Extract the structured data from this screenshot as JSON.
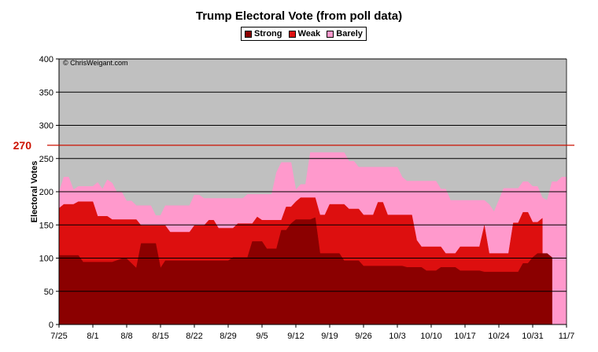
{
  "chart_data": {
    "type": "area",
    "stacked": true,
    "title": "Trump Electoral Vote (from poll data)",
    "ylabel": "Electoral Votes",
    "xlabel": "",
    "ylim": [
      0,
      400
    ],
    "yticks": [
      0,
      50,
      100,
      150,
      200,
      250,
      300,
      350,
      400
    ],
    "xticks": [
      "7/25",
      "8/1",
      "8/8",
      "8/15",
      "8/22",
      "8/29",
      "9/5",
      "9/12",
      "9/19",
      "9/26",
      "10/3",
      "10/10",
      "10/17",
      "10/24",
      "10/31",
      "11/7"
    ],
    "x_range": [
      0,
      105
    ],
    "grid": true,
    "legend_position": "top-center",
    "watermark": "© ChrisWeigant.com",
    "reference_line": {
      "value": 270,
      "label": "270",
      "color": "#cc1100"
    },
    "colors": {
      "Strong": "#8b0000",
      "Weak": "#dd0f0f",
      "Barely": "#ff99cc",
      "plot_bg": "#c0c0c0"
    },
    "series_cumulative": [
      {
        "name": "Strong",
        "points": [
          [
            0,
            104
          ],
          [
            4,
            104
          ],
          [
            5,
            94
          ],
          [
            11,
            94
          ],
          [
            13,
            99
          ],
          [
            14,
            99
          ],
          [
            16,
            85
          ],
          [
            17,
            122
          ],
          [
            20,
            122
          ],
          [
            21,
            85
          ],
          [
            22,
            96
          ],
          [
            35,
            96
          ],
          [
            36,
            101
          ],
          [
            39,
            101
          ],
          [
            40,
            125
          ],
          [
            42,
            125
          ],
          [
            43,
            114
          ],
          [
            45,
            114
          ],
          [
            46,
            142
          ],
          [
            47,
            142
          ],
          [
            48,
            152
          ],
          [
            49,
            158
          ],
          [
            52,
            158
          ],
          [
            53,
            161
          ],
          [
            54,
            107
          ],
          [
            58,
            107
          ],
          [
            59,
            96
          ],
          [
            62,
            96
          ],
          [
            63,
            88
          ],
          [
            71,
            88
          ],
          [
            72,
            86
          ],
          [
            75,
            86
          ],
          [
            76,
            81
          ],
          [
            78,
            81
          ],
          [
            79,
            86
          ],
          [
            82,
            86
          ],
          [
            83,
            81
          ],
          [
            87,
            81
          ],
          [
            88,
            79
          ],
          [
            95,
            79
          ],
          [
            96,
            92
          ],
          [
            97,
            92
          ],
          [
            98,
            101
          ],
          [
            99,
            107
          ],
          [
            101,
            107
          ],
          [
            102,
            101
          ]
        ]
      },
      {
        "name": "Weak",
        "points": [
          [
            0,
            175
          ],
          [
            1,
            181
          ],
          [
            3,
            181
          ],
          [
            4,
            185
          ],
          [
            7,
            185
          ],
          [
            8,
            163
          ],
          [
            10,
            163
          ],
          [
            11,
            158
          ],
          [
            16,
            158
          ],
          [
            17,
            149
          ],
          [
            22,
            149
          ],
          [
            23,
            139
          ],
          [
            27,
            139
          ],
          [
            28,
            149
          ],
          [
            30,
            149
          ],
          [
            31,
            157
          ],
          [
            32,
            157
          ],
          [
            33,
            145
          ],
          [
            36,
            145
          ],
          [
            37,
            152
          ],
          [
            40,
            152
          ],
          [
            41,
            162
          ],
          [
            42,
            157
          ],
          [
            43,
            157
          ],
          [
            46,
            157
          ],
          [
            47,
            177
          ],
          [
            48,
            177
          ],
          [
            49,
            185
          ],
          [
            50,
            191
          ],
          [
            53,
            191
          ],
          [
            54,
            165
          ],
          [
            55,
            165
          ],
          [
            56,
            181
          ],
          [
            59,
            181
          ],
          [
            60,
            174
          ],
          [
            62,
            174
          ],
          [
            63,
            165
          ],
          [
            65,
            165
          ],
          [
            66,
            184
          ],
          [
            67,
            184
          ],
          [
            68,
            165
          ],
          [
            73,
            165
          ],
          [
            74,
            127
          ],
          [
            75,
            117
          ],
          [
            79,
            117
          ],
          [
            80,
            107
          ],
          [
            82,
            107
          ],
          [
            83,
            117
          ],
          [
            87,
            117
          ],
          [
            88,
            149
          ],
          [
            89,
            107
          ],
          [
            92,
            107
          ],
          [
            93,
            107
          ],
          [
            94,
            153
          ],
          [
            95,
            153
          ],
          [
            96,
            169
          ],
          [
            97,
            169
          ],
          [
            98,
            154
          ],
          [
            99,
            154
          ],
          [
            100,
            160
          ]
        ]
      },
      {
        "name": "Barely",
        "points": [
          [
            0,
            199
          ],
          [
            1,
            222
          ],
          [
            2,
            222
          ],
          [
            3,
            203
          ],
          [
            4,
            208
          ],
          [
            7,
            208
          ],
          [
            8,
            214
          ],
          [
            9,
            204
          ],
          [
            10,
            218
          ],
          [
            11,
            213
          ],
          [
            12,
            199
          ],
          [
            13,
            199
          ],
          [
            14,
            186
          ],
          [
            15,
            186
          ],
          [
            16,
            179
          ],
          [
            19,
            179
          ],
          [
            20,
            164
          ],
          [
            21,
            164
          ],
          [
            22,
            179
          ],
          [
            27,
            179
          ],
          [
            28,
            195
          ],
          [
            29,
            195
          ],
          [
            30,
            190
          ],
          [
            38,
            190
          ],
          [
            39,
            196
          ],
          [
            44,
            196
          ],
          [
            45,
            229
          ],
          [
            46,
            244
          ],
          [
            48,
            244
          ],
          [
            49,
            203
          ],
          [
            50,
            211
          ],
          [
            51,
            211
          ],
          [
            52,
            259
          ],
          [
            59,
            259
          ],
          [
            60,
            246
          ],
          [
            61,
            246
          ],
          [
            62,
            237
          ],
          [
            70,
            237
          ],
          [
            71,
            222
          ],
          [
            72,
            216
          ],
          [
            78,
            216
          ],
          [
            79,
            204
          ],
          [
            80,
            204
          ],
          [
            81,
            187
          ],
          [
            88,
            187
          ],
          [
            89,
            181
          ],
          [
            90,
            170
          ],
          [
            91,
            187
          ],
          [
            92,
            205
          ],
          [
            95,
            205
          ],
          [
            96,
            215
          ],
          [
            97,
            215
          ],
          [
            98,
            208
          ],
          [
            99,
            208
          ],
          [
            100,
            191
          ],
          [
            101,
            187
          ],
          [
            102,
            215
          ],
          [
            103,
            215
          ],
          [
            104,
            222
          ],
          [
            105,
            222
          ]
        ]
      }
    ]
  }
}
